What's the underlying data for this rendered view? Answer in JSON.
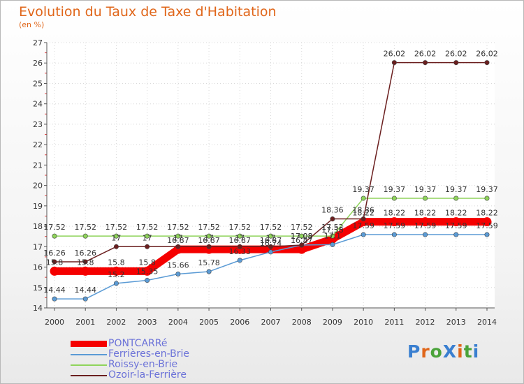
{
  "header": {
    "title": "Evolution du Taux de Taxe d'Habitation",
    "unit": "(en %)"
  },
  "logo": {
    "text": "ProXiti",
    "colors": [
      "#3a7fd0",
      "#e0661a",
      "#4aa33a",
      "#3a7fd0",
      "#e0661a",
      "#4aa33a",
      "#3a7fd0"
    ]
  },
  "chart_data": {
    "type": "line",
    "title": "Evolution du Taux de Taxe d'Habitation",
    "ylabel": "(en %)",
    "xlabel": "",
    "ylim": [
      14,
      27
    ],
    "yticks": [
      14,
      15,
      16,
      17,
      18,
      19,
      20,
      21,
      22,
      23,
      24,
      25,
      26,
      27
    ],
    "grid": true,
    "legend_position": "bottom-left",
    "x": [
      "2000",
      "2001",
      "2002",
      "2003",
      "2004",
      "2005",
      "2006",
      "2007",
      "2008",
      "2009",
      "2010",
      "2011",
      "2012",
      "2013",
      "2014"
    ],
    "series": [
      {
        "name": "PONTCARRé",
        "color": "#f50000",
        "style": "thick",
        "values": [
          15.8,
          15.8,
          15.8,
          15.8,
          16.87,
          16.87,
          16.87,
          16.87,
          16.87,
          17.38,
          18.22,
          18.22,
          18.22,
          18.22,
          18.22
        ],
        "labels": [
          "15.8",
          "15.8",
          "15.8",
          "15.8",
          "16.87",
          "16.87",
          "16.87",
          "16.87",
          "16.87",
          "17.38",
          "18.22",
          "18.22",
          "18.22",
          "18.22",
          "18.22"
        ]
      },
      {
        "name": "Ferrières-en-Brie",
        "color": "#5b9bd5",
        "style": "thin",
        "values": [
          14.44,
          14.44,
          15.2,
          15.35,
          15.66,
          15.78,
          16.33,
          16.74,
          17.08,
          17.1,
          17.59,
          17.59,
          17.59,
          17.59,
          17.59
        ],
        "labels": [
          "14.44",
          "14.44",
          "15.2",
          "15.35",
          "15.66",
          "15.78",
          "16.33",
          "16.74",
          "17.08",
          "17.1",
          "17.59",
          "17.59",
          "17.59",
          "17.59",
          "17.59"
        ]
      },
      {
        "name": "Roissy-en-Brie",
        "color": "#8fd45b",
        "style": "thin",
        "values": [
          17.52,
          17.52,
          17.52,
          17.52,
          17.52,
          17.52,
          17.52,
          17.52,
          17.52,
          17.52,
          19.37,
          19.37,
          19.37,
          19.37,
          19.37
        ],
        "labels": [
          "17.52",
          "17.52",
          "17.52",
          "17.52",
          "17.52",
          "17.52",
          "17.52",
          "17.52",
          "17.52",
          "17.52",
          "19.37",
          "19.37",
          "19.37",
          "19.37",
          "19.37"
        ]
      },
      {
        "name": "Ozoir-la-Ferrière",
        "color": "#6b1f1f",
        "style": "thin",
        "values": [
          16.26,
          16.26,
          17.0,
          17.0,
          17.0,
          17.0,
          17.0,
          17.0,
          17.08,
          18.36,
          18.36,
          26.02,
          26.02,
          26.02,
          26.02
        ],
        "labels": [
          "16.26",
          "16.26",
          "17",
          "17",
          "17",
          "17",
          "17",
          "17",
          "17.08",
          "18.36",
          "18.36",
          "26.02",
          "26.02",
          "26.02",
          "26.02"
        ]
      }
    ]
  }
}
